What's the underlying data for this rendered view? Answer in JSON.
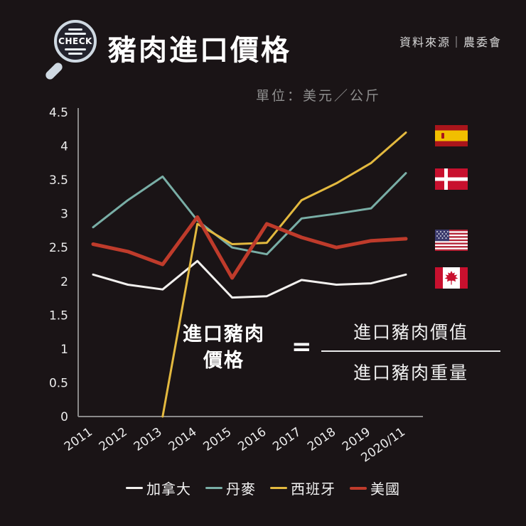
{
  "page": {
    "background": "#1a1416",
    "logo_text": "CHECK",
    "title": "豬肉進口價格",
    "source": "資料來源｜農委會",
    "unit_label": "單位：美元／公斤"
  },
  "annotation": {
    "lhs_line1": "進口豬肉",
    "lhs_line2": "價格",
    "equals": "=",
    "numerator": "進口豬肉價值",
    "denominator": "進口豬肉重量"
  },
  "chart_data": {
    "type": "line",
    "title": "豬肉進口價格",
    "unit": "美元／公斤",
    "categories": [
      "2011",
      "2012",
      "2013",
      "2014",
      "2015",
      "2016",
      "2017",
      "2018",
      "2019",
      "2020/11"
    ],
    "ylim": [
      0,
      4.5
    ],
    "ytick_step": 0.5,
    "grid": false,
    "legend_position": "bottom",
    "axis_color": "#8a8a8a",
    "tick_label_color": "#ececec",
    "series": [
      {
        "name": "加拿大",
        "flag": "canada",
        "color": "#f2f0ee",
        "width": 3,
        "values": [
          2.1,
          1.95,
          1.88,
          2.3,
          1.76,
          1.78,
          2.02,
          1.95,
          1.97,
          2.1
        ]
      },
      {
        "name": "丹麥",
        "flag": "denmark",
        "color": "#79aea6",
        "width": 3,
        "values": [
          2.8,
          3.2,
          3.55,
          2.9,
          2.5,
          2.4,
          2.93,
          3.0,
          3.08,
          3.6
        ]
      },
      {
        "name": "西班牙",
        "flag": "spain",
        "color": "#e3b93f",
        "width": 3,
        "values": [
          null,
          null,
          0,
          2.85,
          2.55,
          2.57,
          3.2,
          3.45,
          3.75,
          4.2
        ]
      },
      {
        "name": "美國",
        "flag": "usa",
        "color": "#bf3b2b",
        "width": 5,
        "values": [
          2.55,
          2.44,
          2.25,
          2.95,
          2.05,
          2.85,
          2.65,
          2.5,
          2.6,
          2.63
        ]
      }
    ]
  }
}
